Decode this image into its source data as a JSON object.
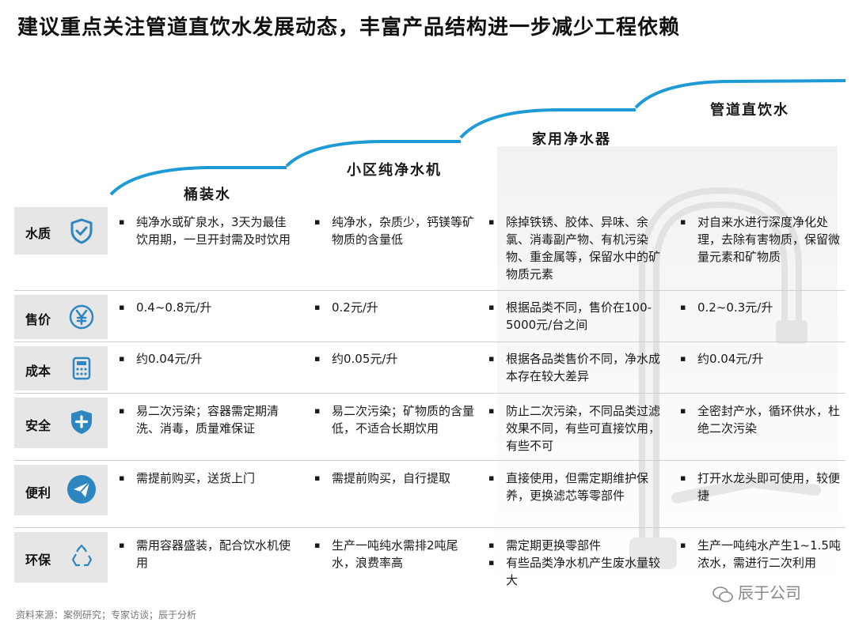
{
  "title": "建议重点关注管道直饮水发展动态，丰富产品结构进一步减少工程依赖",
  "colors": {
    "accent_blue": "#1e9bd7",
    "icon_blue": "#2e86c1",
    "label_bg": "#e6e6e6"
  },
  "columns": [
    {
      "name": "桶装水"
    },
    {
      "name": "小区纯净水机"
    },
    {
      "name": "家用净水器"
    },
    {
      "name": "管道直饮水"
    }
  ],
  "rows": [
    {
      "label": "水质",
      "icon": "shield-check-icon",
      "cells": [
        [
          "纯净水或矿泉水，3天为最佳饮用期，一旦开封需及时饮用"
        ],
        [
          "纯净水，杂质少，钙镁等矿物质的含量低"
        ],
        [
          "除掉铁锈、胶体、异味、余氯、消毒副产物、有机污染物、重金属等，保留水中的矿物质元素"
        ],
        [
          "对自来水进行深度净化处理，去除有害物质，保留微量元素和矿物质"
        ]
      ]
    },
    {
      "label": "售价",
      "icon": "yuan-icon",
      "cells": [
        [
          "0.4~0.8元/升"
        ],
        [
          "0.2元/升"
        ],
        [
          "根据品类不同，售价在100-5000元/台之间"
        ],
        [
          "0.2~0.3元/升"
        ]
      ]
    },
    {
      "label": "成本",
      "icon": "calculator-icon",
      "cells": [
        [
          "约0.04元/升"
        ],
        [
          "约0.05元/升"
        ],
        [
          "根据各品类售价不同，净水成本存在较大差异"
        ],
        [
          "约0.04元/升"
        ]
      ]
    },
    {
      "label": "安全",
      "icon": "shield-plus-icon",
      "cells": [
        [
          "易二次污染；容器需定期清洗、消毒，质量难保证"
        ],
        [
          "易二次污染；矿物质的含量低，不适合长期饮用"
        ],
        [
          "防止二次污染，不同品类过滤效果不同，有些可直接饮用，有些不可"
        ],
        [
          "全密封产水，循环供水，杜绝二次污染"
        ]
      ]
    },
    {
      "label": "便利",
      "icon": "paper-plane-icon",
      "cells": [
        [
          "需提前购买，送货上门"
        ],
        [
          "需提前购买，自行提取"
        ],
        [
          "直接使用，但需定期维护保养，更换滤芯等零部件"
        ],
        [
          "打开水龙头即可使用，较便捷"
        ]
      ]
    },
    {
      "label": "环保",
      "icon": "recycle-icon",
      "cells": [
        [
          "需用容器盛装，配合饮水机使用"
        ],
        [
          "生产一吨纯水需排2吨尾水，浪费率高"
        ],
        [
          "需定期更换零部件",
          "有些品类净水机产生废水量较大"
        ],
        [
          "生产一吨纯水产生1~1.5吨浓水，需进行二次利用"
        ]
      ]
    }
  ],
  "source": "资料来源：案例研究；专家访谈；辰于分析",
  "watermark": "辰于公司"
}
